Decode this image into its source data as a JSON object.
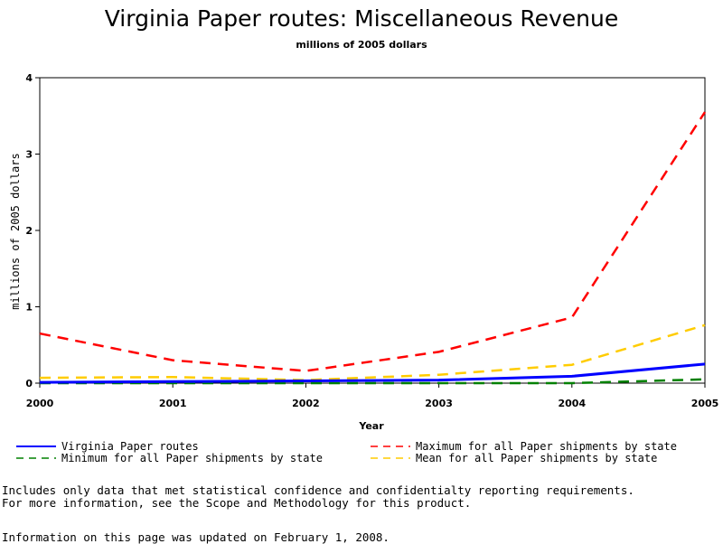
{
  "chart_data": {
    "type": "line",
    "title": "Virginia Paper routes: Miscellaneous Revenue",
    "subtitle": "millions of 2005 dollars",
    "xlabel": "Year",
    "ylabel": "millions of 2005 dollars",
    "x": [
      2000,
      2001,
      2002,
      2003,
      2004,
      2005
    ],
    "xlim": [
      2000,
      2005
    ],
    "ylim": [
      0,
      4
    ],
    "yticks": [
      0,
      1,
      2,
      3,
      4
    ],
    "grid": false,
    "legend_position": "bottom",
    "series": [
      {
        "name": "Virginia Paper routes",
        "values": [
          0.01,
          0.02,
          0.03,
          0.04,
          0.09,
          0.25
        ],
        "color": "#0000ff",
        "dash": "solid"
      },
      {
        "name": "Maximum for all Paper shipments by state",
        "values": [
          0.65,
          0.3,
          0.16,
          0.41,
          0.86,
          3.55
        ],
        "color": "#ff0000",
        "dash": "dashed"
      },
      {
        "name": "Minimum for all Paper shipments by state",
        "values": [
          0.0,
          0.0,
          0.0,
          0.0,
          0.0,
          0.05
        ],
        "color": "#008000",
        "dash": "dashed"
      },
      {
        "name": "Mean for all Paper shipments by state",
        "values": [
          0.07,
          0.08,
          0.04,
          0.11,
          0.24,
          0.76
        ],
        "color": "#ffcc00",
        "dash": "dashed"
      }
    ]
  },
  "notes": {
    "line1": "Includes only data that met statistical confidence and confidentialty reporting requirements.",
    "line2": "For more information, see the Scope and Methodology for this product.",
    "updated": "Information on this page was updated on February 1, 2008."
  }
}
